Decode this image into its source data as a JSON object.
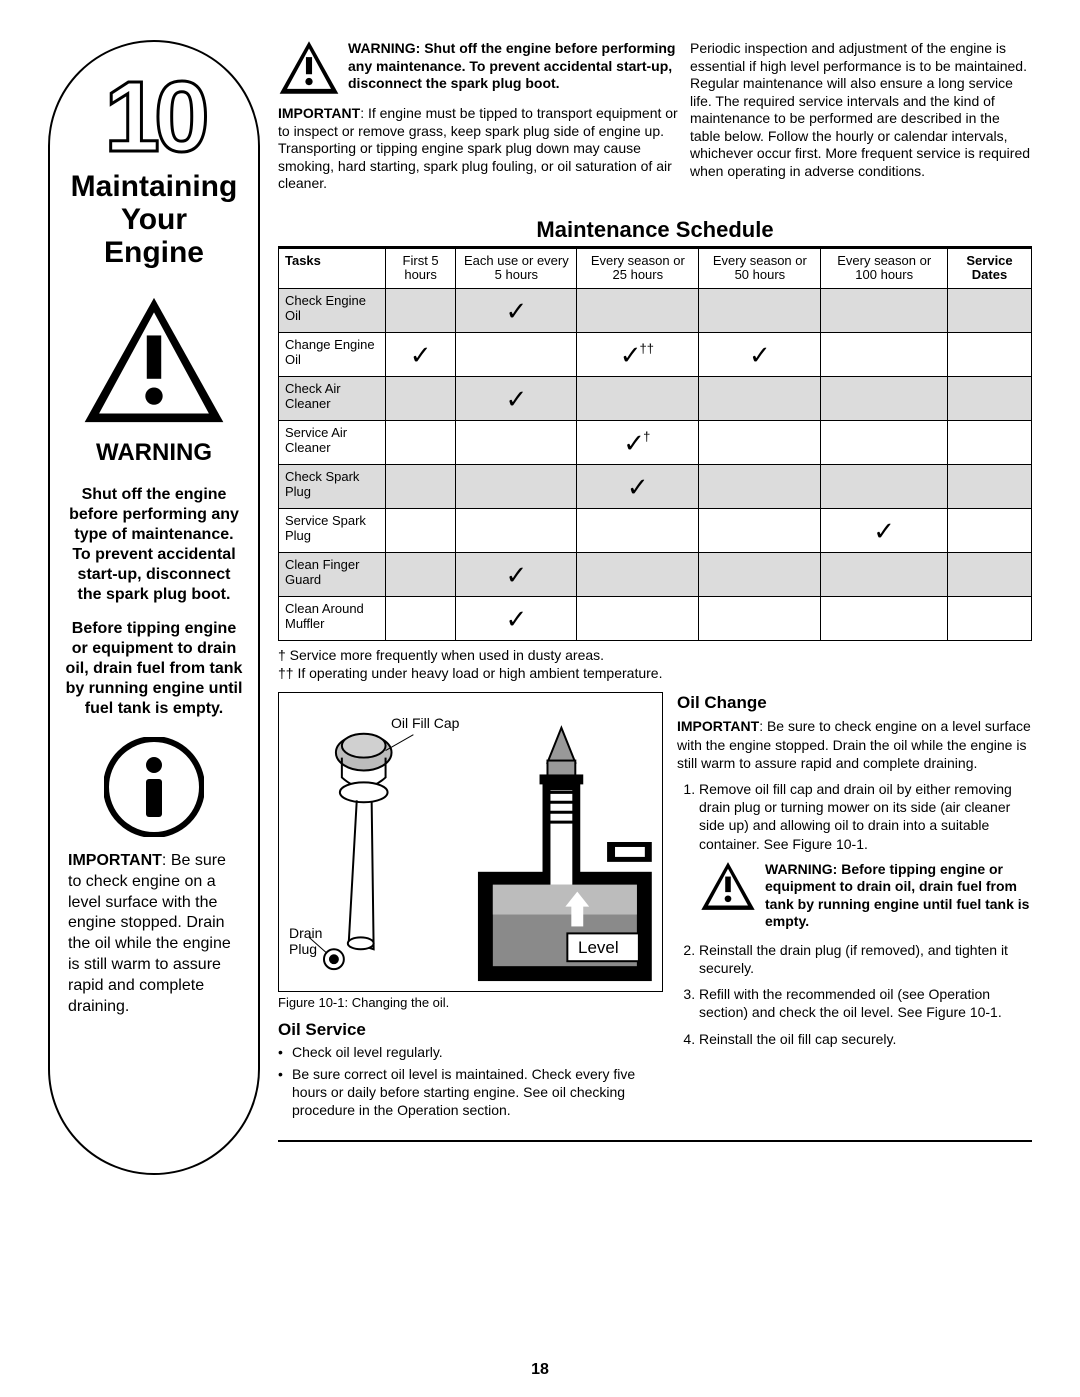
{
  "pageNumber": "18",
  "sidebar": {
    "chapterNumber": "10",
    "title": "Maintaining\nYour\nEngine",
    "warningLabel": "WARNING",
    "para1": "Shut off the engine before performing any type of maintenance. To prevent accidental start-up, disconnect the spark plug boot.",
    "para2": "Before tipping engine or equipment to drain oil, drain fuel from tank by running engine until fuel tank is empty.",
    "importantLabel": "IMPORTANT",
    "importantText": ": Be sure to check engine on a level surface with the engine stopped. Drain the oil while the engine is still warm to assure rapid and complete draining."
  },
  "topWarning": {
    "boldPart": "WARNING: Shut off the engine before performing any maintenance. To prevent accidental start-up, disconnect the spark plug boot."
  },
  "importantPara": {
    "label": "IMPORTANT",
    "text": ": If engine must be tipped to transport equipment or to inspect or remove grass, keep spark plug side of engine up. Transporting or tipping engine spark plug down may cause smoking, hard starting, spark plug fouling, or oil saturation of air cleaner."
  },
  "introRight": "Periodic inspection and adjustment of the engine is essential if high level performance is to be maintained. Regular maintenance will also ensure a long service life. The required service intervals and the kind of maintenance to be performed are described in the table below. Follow the hourly or calendar intervals, whichever occur first. More frequent service is required when operating in adverse conditions.",
  "scheduleTitle": "Maintenance Schedule",
  "table": {
    "headers": [
      "Tasks",
      "First 5 hours",
      "Each use or every 5 hours",
      "Every season or 25 hours",
      "Every season or 50 hours",
      "Every season or 100 hours",
      "Service Dates"
    ],
    "boldHeaders": [
      true,
      false,
      false,
      false,
      false,
      false,
      true
    ],
    "rows": [
      {
        "task": "Check Engine Oil",
        "checks": [
          "",
          "✓",
          "",
          "",
          "",
          ""
        ]
      },
      {
        "task": "Change Engine Oil",
        "checks": [
          "✓",
          "",
          "✓††",
          "✓",
          "",
          ""
        ]
      },
      {
        "task": "Check Air Cleaner",
        "checks": [
          "",
          "✓",
          "",
          "",
          "",
          ""
        ]
      },
      {
        "task": "Service Air Cleaner",
        "checks": [
          "",
          "",
          "✓†",
          "",
          "",
          ""
        ]
      },
      {
        "task": "Check Spark Plug",
        "checks": [
          "",
          "",
          "✓",
          "",
          "",
          ""
        ]
      },
      {
        "task": "Service Spark Plug",
        "checks": [
          "",
          "",
          "",
          "",
          "✓",
          ""
        ]
      },
      {
        "task": "Clean Finger Guard",
        "checks": [
          "",
          "✓",
          "",
          "",
          "",
          ""
        ]
      },
      {
        "task": "Clean Around Muffler",
        "checks": [
          "",
          "✓",
          "",
          "",
          "",
          ""
        ]
      }
    ]
  },
  "footnote1": "† Service more frequently when used in dusty areas.",
  "footnote2": "††  If operating under heavy load or high ambient temperature.",
  "figure": {
    "labelOilFill": "Oil Fill Cap",
    "labelDrain": "Drain Plug",
    "labelLevel": "Level",
    "caption": "Figure 10-1: Changing the oil."
  },
  "oilService": {
    "heading": "Oil Service",
    "bullets": [
      "Check oil level regularly.",
      "Be sure correct oil level is maintained. Check every five hours or daily before starting engine. See oil checking procedure in the Operation section."
    ]
  },
  "oilChange": {
    "heading": "Oil Change",
    "importantLabel": "IMPORTANT",
    "importantText": ": Be sure to check engine on a level surface with the engine stopped. Drain the oil while the engine is still warm to assure rapid and complete draining.",
    "steps": [
      "Remove oil fill cap and drain oil by either removing drain plug or turning mower on its side (air cleaner side up) and allowing oil to drain into a suitable container. See Figure 10-1.",
      "Reinstall the drain plug (if removed), and tighten it securely.",
      "Refill with the recommended oil (see Operation section) and check the oil level. See Figure 10-1.",
      "Reinstall the oil fill cap securely."
    ],
    "inlineWarning": "WARNING: Before tipping engine or equipment to drain oil, drain fuel from tank by running engine until fuel tank is empty."
  }
}
